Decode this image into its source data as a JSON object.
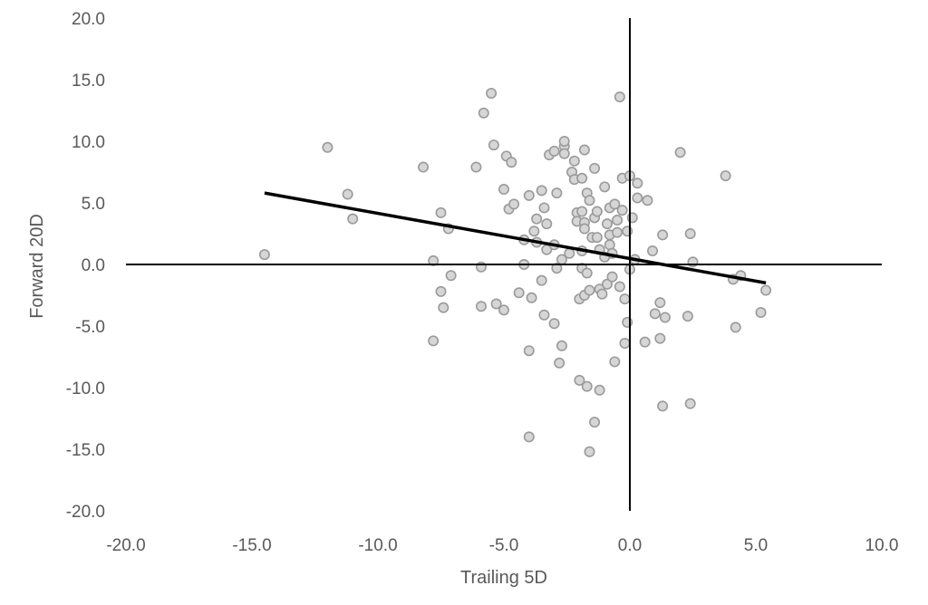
{
  "chart_data": {
    "type": "scatter",
    "xlabel": "Trailing 5D",
    "ylabel": "Forward 20D",
    "xlim": [
      -20,
      10
    ],
    "ylim": [
      -20,
      20
    ],
    "x_ticks": [
      "-20.0",
      "-15.0",
      "-10.0",
      "-5.0",
      "0.0",
      "5.0",
      "10.0"
    ],
    "y_ticks": [
      "20.0",
      "15.0",
      "10.0",
      "5.0",
      "0.0",
      "-5.0",
      "-10.0",
      "-15.0",
      "-20.0"
    ],
    "grid": false,
    "legend": "none",
    "colors": {
      "marker_fill": "#d6d6d6",
      "marker_edge": "#9a9a9a",
      "trendline": "#000000",
      "axes": "#000000",
      "text": "#595959"
    },
    "trendline": {
      "x": [
        -14.5,
        5.4
      ],
      "y": [
        5.8,
        -1.5
      ]
    },
    "points": [
      [
        -14.5,
        0.8
      ],
      [
        -12.0,
        9.5
      ],
      [
        -11.2,
        5.7
      ],
      [
        -11.0,
        3.7
      ],
      [
        -8.2,
        7.9
      ],
      [
        -7.8,
        0.3
      ],
      [
        -7.8,
        -6.2
      ],
      [
        -7.5,
        4.2
      ],
      [
        -7.5,
        -2.2
      ],
      [
        -7.4,
        -3.5
      ],
      [
        -7.2,
        2.9
      ],
      [
        -7.1,
        -0.9
      ],
      [
        -6.1,
        7.9
      ],
      [
        -5.9,
        -0.2
      ],
      [
        -5.9,
        -3.4
      ],
      [
        -5.8,
        12.3
      ],
      [
        -5.5,
        13.9
      ],
      [
        -5.4,
        9.7
      ],
      [
        -5.3,
        -3.2
      ],
      [
        -5.0,
        6.1
      ],
      [
        -5.0,
        -3.7
      ],
      [
        -4.9,
        8.8
      ],
      [
        -4.8,
        4.5
      ],
      [
        -4.7,
        8.3
      ],
      [
        -4.6,
        4.9
      ],
      [
        -4.4,
        -2.3
      ],
      [
        -4.2,
        2.0
      ],
      [
        -4.2,
        0.0
      ],
      [
        -4.0,
        5.6
      ],
      [
        -4.0,
        -7.0
      ],
      [
        -4.0,
        -14.0
      ],
      [
        -3.9,
        -2.7
      ],
      [
        -3.8,
        2.7
      ],
      [
        -3.7,
        1.8
      ],
      [
        -3.7,
        3.7
      ],
      [
        -3.5,
        6.0
      ],
      [
        -3.5,
        -1.3
      ],
      [
        -3.4,
        4.6
      ],
      [
        -3.4,
        -4.1
      ],
      [
        -3.3,
        3.3
      ],
      [
        -3.3,
        1.2
      ],
      [
        -3.2,
        8.9
      ],
      [
        -3.0,
        9.2
      ],
      [
        -3.0,
        1.6
      ],
      [
        -3.0,
        -4.8
      ],
      [
        -2.9,
        5.8
      ],
      [
        -2.9,
        -0.3
      ],
      [
        -2.8,
        -8.0
      ],
      [
        -2.7,
        0.4
      ],
      [
        -2.7,
        -6.6
      ],
      [
        -2.6,
        9.6
      ],
      [
        -2.6,
        10.0
      ],
      [
        -2.6,
        9.0
      ],
      [
        -2.4,
        0.9
      ],
      [
        -2.3,
        7.5
      ],
      [
        -2.2,
        6.9
      ],
      [
        -2.2,
        8.4
      ],
      [
        -2.1,
        4.2
      ],
      [
        -2.1,
        3.5
      ],
      [
        -2.0,
        -2.8
      ],
      [
        -2.0,
        -9.4
      ],
      [
        -1.9,
        4.3
      ],
      [
        -1.9,
        7.0
      ],
      [
        -1.9,
        1.1
      ],
      [
        -1.9,
        -0.3
      ],
      [
        -1.8,
        3.4
      ],
      [
        -1.8,
        2.9
      ],
      [
        -1.8,
        9.3
      ],
      [
        -1.8,
        -2.5
      ],
      [
        -1.7,
        -0.7
      ],
      [
        -1.7,
        5.8
      ],
      [
        -1.7,
        -9.9
      ],
      [
        -1.6,
        5.2
      ],
      [
        -1.6,
        -2.1
      ],
      [
        -1.6,
        -15.2
      ],
      [
        -1.5,
        2.2
      ],
      [
        -1.4,
        7.8
      ],
      [
        -1.4,
        3.8
      ],
      [
        -1.4,
        -12.8
      ],
      [
        -1.3,
        4.3
      ],
      [
        -1.3,
        2.2
      ],
      [
        -1.2,
        -10.2
      ],
      [
        -1.2,
        1.2
      ],
      [
        -1.2,
        -2.0
      ],
      [
        -1.1,
        -2.4
      ],
      [
        -1.0,
        6.3
      ],
      [
        -1.0,
        0.6
      ],
      [
        -0.9,
        3.3
      ],
      [
        -0.9,
        -1.6
      ],
      [
        -0.8,
        2.4
      ],
      [
        -0.8,
        1.6
      ],
      [
        -0.8,
        4.6
      ],
      [
        -0.7,
        0.9
      ],
      [
        -0.7,
        -1.0
      ],
      [
        -0.6,
        -7.9
      ],
      [
        -0.6,
        4.9
      ],
      [
        -0.5,
        3.6
      ],
      [
        -0.5,
        2.6
      ],
      [
        -0.4,
        -1.8
      ],
      [
        -0.4,
        13.6
      ],
      [
        -0.3,
        4.4
      ],
      [
        -0.3,
        7.0
      ],
      [
        -0.2,
        -2.8
      ],
      [
        -0.2,
        -6.4
      ],
      [
        -0.1,
        -4.7
      ],
      [
        -0.1,
        2.7
      ],
      [
        0.0,
        -0.4
      ],
      [
        0.0,
        7.2
      ],
      [
        0.1,
        3.8
      ],
      [
        0.2,
        0.4
      ],
      [
        0.3,
        6.6
      ],
      [
        0.3,
        5.4
      ],
      [
        0.6,
        -6.3
      ],
      [
        0.7,
        5.2
      ],
      [
        0.9,
        1.1
      ],
      [
        1.0,
        -4.0
      ],
      [
        1.2,
        -6.0
      ],
      [
        1.2,
        -3.1
      ],
      [
        1.3,
        2.4
      ],
      [
        1.3,
        -11.5
      ],
      [
        1.4,
        -4.3
      ],
      [
        2.0,
        9.1
      ],
      [
        2.3,
        -4.2
      ],
      [
        2.4,
        2.5
      ],
      [
        2.4,
        -11.3
      ],
      [
        2.5,
        0.2
      ],
      [
        3.8,
        7.2
      ],
      [
        4.1,
        -1.2
      ],
      [
        4.2,
        -5.1
      ],
      [
        4.4,
        -0.9
      ],
      [
        5.2,
        -3.9
      ],
      [
        5.4,
        -2.1
      ]
    ]
  }
}
